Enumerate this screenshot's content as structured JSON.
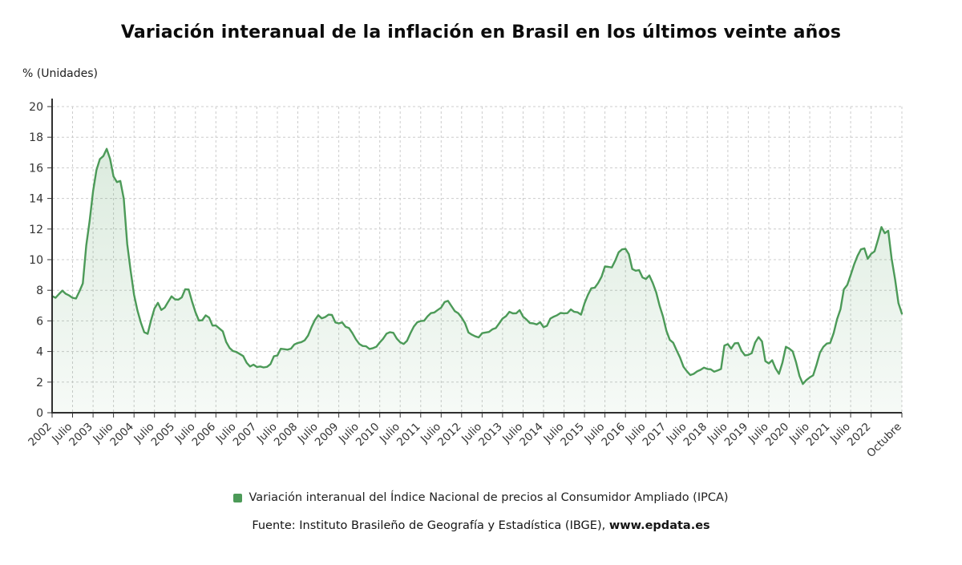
{
  "footer": {
    "source_prefix": "Fuente: Instituto Brasileño de Geografía y Estadística (IBGE), ",
    "source_site": "www.epdata.es"
  },
  "chart_data": {
    "type": "area",
    "title": "Variación interanual de la inflación en Brasil en los últimos veinte años",
    "ylabel": "% (Unidades)",
    "xlabel": "",
    "ylim": [
      0,
      20
    ],
    "ytick_step": 2,
    "grid": true,
    "legend_position": "bottom",
    "line_color": "#4c9a58",
    "x_start_month": "2002-01",
    "x_end_month": "2022-10",
    "x_ticks": [
      {
        "label": "2002",
        "m": 0
      },
      {
        "label": "Julio",
        "m": 6
      },
      {
        "label": "2003",
        "m": 12
      },
      {
        "label": "Julio",
        "m": 18
      },
      {
        "label": "2004",
        "m": 24
      },
      {
        "label": "Julio",
        "m": 30
      },
      {
        "label": "2005",
        "m": 36
      },
      {
        "label": "Julio",
        "m": 42
      },
      {
        "label": "2006",
        "m": 48
      },
      {
        "label": "Julio",
        "m": 54
      },
      {
        "label": "2007",
        "m": 60
      },
      {
        "label": "Julio",
        "m": 66
      },
      {
        "label": "2008",
        "m": 72
      },
      {
        "label": "Julio",
        "m": 78
      },
      {
        "label": "2009",
        "m": 84
      },
      {
        "label": "Julio",
        "m": 90
      },
      {
        "label": "2010",
        "m": 96
      },
      {
        "label": "Julio",
        "m": 102
      },
      {
        "label": "2011",
        "m": 108
      },
      {
        "label": "Julio",
        "m": 114
      },
      {
        "label": "2012",
        "m": 120
      },
      {
        "label": "Julio",
        "m": 126
      },
      {
        "label": "2013",
        "m": 132
      },
      {
        "label": "Julio",
        "m": 138
      },
      {
        "label": "2014",
        "m": 144
      },
      {
        "label": "Julio",
        "m": 150
      },
      {
        "label": "2015",
        "m": 156
      },
      {
        "label": "Julio",
        "m": 162
      },
      {
        "label": "2016",
        "m": 168
      },
      {
        "label": "Julio",
        "m": 174
      },
      {
        "label": "2017",
        "m": 180
      },
      {
        "label": "Julio",
        "m": 186
      },
      {
        "label": "2018",
        "m": 192
      },
      {
        "label": "Julio",
        "m": 198
      },
      {
        "label": "2019",
        "m": 204
      },
      {
        "label": "Julio",
        "m": 210
      },
      {
        "label": "2020",
        "m": 216
      },
      {
        "label": "Julio",
        "m": 222
      },
      {
        "label": "2021",
        "m": 228
      },
      {
        "label": "Julio",
        "m": 234
      },
      {
        "label": "2022",
        "m": 240
      },
      {
        "label": "Octubre",
        "m": 249
      }
    ],
    "series": [
      {
        "name": "Variación interanual del Índice Nacional de precios al Consumidor Ampliado (IPCA)",
        "values": [
          7.62,
          7.51,
          7.75,
          7.98,
          7.77,
          7.66,
          7.51,
          7.46,
          7.93,
          8.45,
          10.93,
          12.53,
          14.47,
          15.85,
          16.57,
          16.77,
          17.24,
          16.57,
          15.44,
          15.07,
          15.14,
          13.98,
          11.02,
          9.3,
          7.71,
          6.69,
          5.89,
          5.26,
          5.15,
          6.06,
          6.81,
          7.18,
          6.71,
          6.87,
          7.24,
          7.6,
          7.41,
          7.39,
          7.54,
          8.07,
          8.05,
          7.27,
          6.57,
          6.02,
          6.04,
          6.36,
          6.22,
          5.69,
          5.7,
          5.51,
          5.32,
          4.63,
          4.23,
          4.03,
          3.97,
          3.84,
          3.7,
          3.26,
          3.02,
          3.14,
          2.99,
          3.02,
          2.96,
          3.0,
          3.18,
          3.69,
          3.74,
          4.18,
          4.15,
          4.12,
          4.19,
          4.46,
          4.56,
          4.61,
          4.73,
          5.04,
          5.58,
          6.06,
          6.37,
          6.17,
          6.25,
          6.41,
          6.39,
          5.9,
          5.84,
          5.9,
          5.61,
          5.53,
          5.2,
          4.8,
          4.5,
          4.36,
          4.34,
          4.17,
          4.22,
          4.31,
          4.59,
          4.83,
          5.17,
          5.26,
          5.22,
          4.84,
          4.6,
          4.49,
          4.7,
          5.2,
          5.63,
          5.91,
          5.99,
          6.01,
          6.3,
          6.51,
          6.55,
          6.71,
          6.87,
          7.23,
          7.31,
          6.97,
          6.64,
          6.5,
          6.22,
          5.85,
          5.24,
          5.1,
          4.99,
          4.92,
          5.2,
          5.24,
          5.28,
          5.45,
          5.53,
          5.84,
          6.15,
          6.31,
          6.59,
          6.49,
          6.5,
          6.7,
          6.27,
          6.09,
          5.86,
          5.84,
          5.77,
          5.91,
          5.59,
          5.68,
          6.15,
          6.28,
          6.37,
          6.52,
          6.5,
          6.51,
          6.75,
          6.59,
          6.56,
          6.41,
          7.14,
          7.7,
          8.13,
          8.17,
          8.47,
          8.89,
          9.56,
          9.53,
          9.49,
          9.93,
          10.48,
          10.67,
          10.71,
          10.36,
          9.39,
          9.28,
          9.32,
          8.84,
          8.74,
          8.97,
          8.48,
          7.87,
          6.99,
          6.29,
          5.35,
          4.76,
          4.57,
          4.08,
          3.6,
          3.0,
          2.71,
          2.46,
          2.54,
          2.7,
          2.8,
          2.95,
          2.86,
          2.84,
          2.68,
          2.76,
          2.86,
          4.39,
          4.48,
          4.19,
          4.53,
          4.56,
          4.05,
          3.75,
          3.78,
          3.89,
          4.58,
          4.94,
          4.66,
          3.37,
          3.22,
          3.43,
          2.89,
          2.54,
          3.27,
          4.31,
          4.19,
          4.01,
          3.3,
          2.4,
          1.88,
          2.13,
          2.31,
          2.44,
          3.14,
          3.92,
          4.31,
          4.52,
          4.56,
          5.2,
          6.1,
          6.76,
          8.06,
          8.35,
          8.99,
          9.68,
          10.25,
          10.67,
          10.74,
          10.06,
          10.38,
          10.54,
          11.3,
          12.13,
          11.73,
          11.89,
          10.07,
          8.73,
          7.17,
          6.47
        ]
      }
    ]
  }
}
